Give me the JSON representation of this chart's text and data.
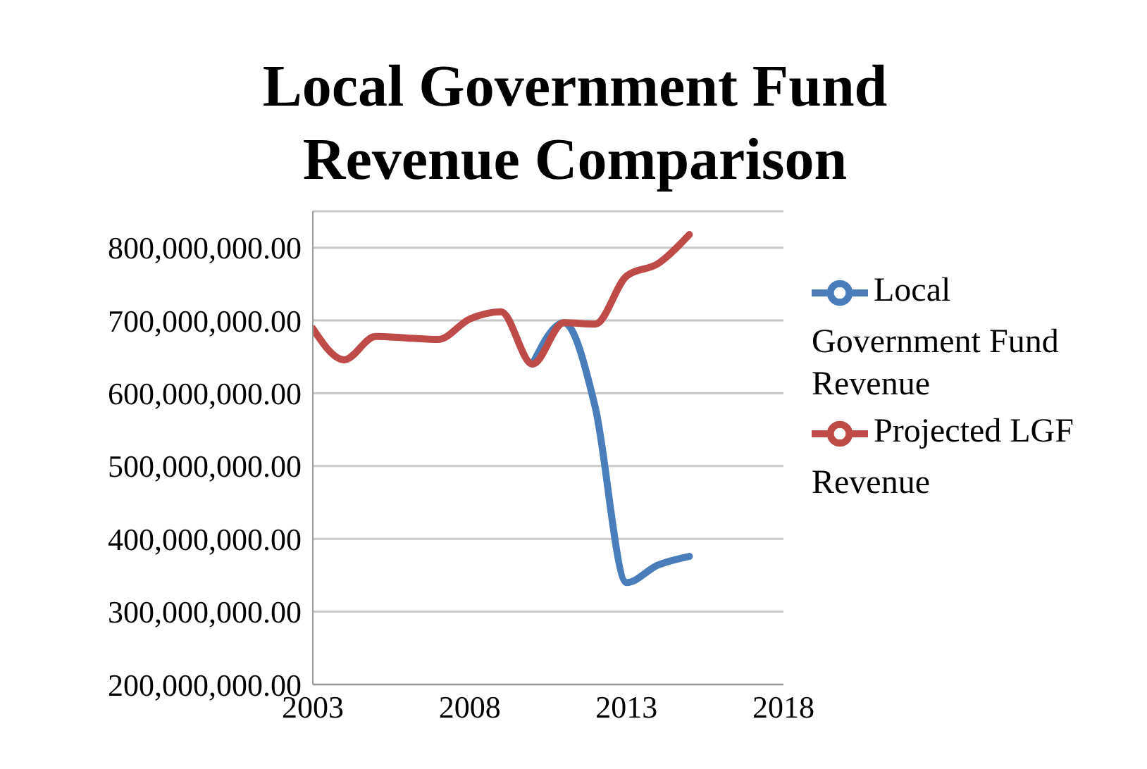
{
  "chart_data": {
    "type": "line",
    "title": "Local Government Fund Revenue Comparison",
    "x": [
      2003,
      2004,
      2005,
      2006,
      2007,
      2008,
      2009,
      2010,
      2011,
      2012,
      2013,
      2014,
      2015
    ],
    "series": [
      {
        "name": "Local Government Fund Revenue",
        "color": "#4a7ebb",
        "values": [
          null,
          null,
          null,
          null,
          null,
          null,
          null,
          640000000,
          697000000,
          581000000,
          340000000,
          364000000,
          376000000
        ]
      },
      {
        "name": "Projected LGF Revenue",
        "color": "#be4b48",
        "values": [
          689000000,
          646000000,
          678000000,
          676000000,
          674000000,
          702000000,
          712000000,
          640000000,
          697000000,
          695000000,
          761000000,
          778000000,
          818000000
        ]
      }
    ],
    "xlim": [
      2003,
      2018
    ],
    "xticks": [
      2003,
      2008,
      2013,
      2018
    ],
    "ylim": [
      200000000,
      850000000
    ],
    "yticks": [
      {
        "value": 200000000,
        "label": "200,000,000.00"
      },
      {
        "value": 300000000,
        "label": "300,000,000.00"
      },
      {
        "value": 400000000,
        "label": "400,000,000.00"
      },
      {
        "value": 500000000,
        "label": "500,000,000.00"
      },
      {
        "value": 600000000,
        "label": "600,000,000.00"
      },
      {
        "value": 700000000,
        "label": "700,000,000.00"
      },
      {
        "value": 800000000,
        "label": "800,000,000.00"
      }
    ],
    "grid": "y",
    "legend": "right",
    "marker": "none",
    "line_style": "solid"
  }
}
